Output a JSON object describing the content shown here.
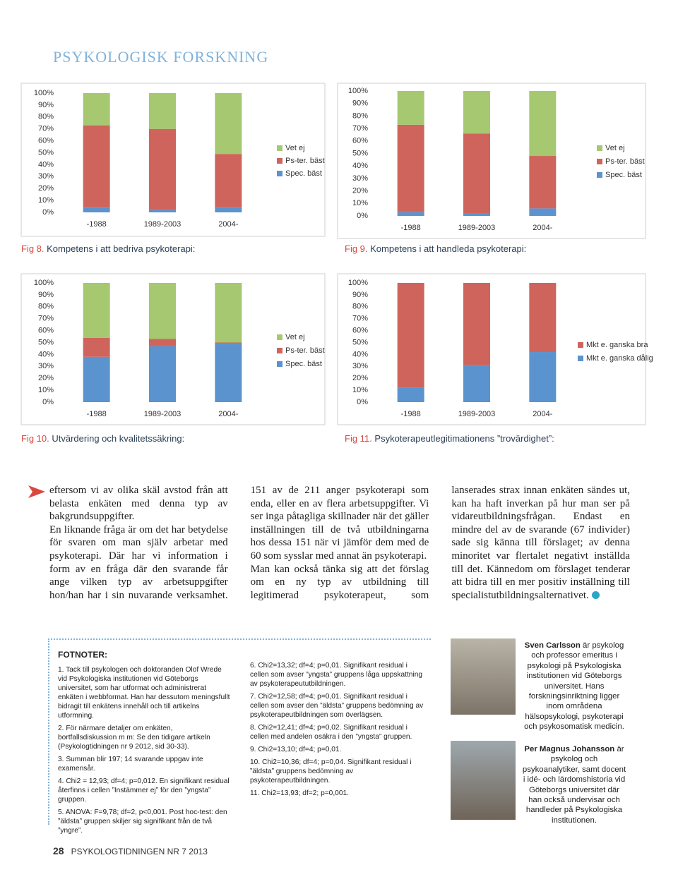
{
  "header": {
    "title": "PSYKOLOGISK FORSKNING"
  },
  "chart_data": [
    {
      "type": "stacked_bar",
      "categories": [
        "-1988",
        "1989-2003",
        "2004-"
      ],
      "series": [
        {
          "name": "Spec. bäst",
          "color": "#5b93cf",
          "values": [
            4,
            2,
            4
          ]
        },
        {
          "name": "Ps-ter. bäst",
          "color": "#cf645c",
          "values": [
            69,
            68,
            45
          ]
        },
        {
          "name": "Vet ej",
          "color": "#a6c870",
          "values": [
            27,
            30,
            51
          ]
        }
      ],
      "ylim": [
        0,
        100
      ],
      "yticks": [
        {
          "value": 0,
          "label": "0%"
        },
        {
          "value": 10,
          "label": "10%"
        },
        {
          "value": 20,
          "label": "20%"
        },
        {
          "value": 30,
          "label": "30%"
        },
        {
          "value": 40,
          "label": "40%"
        },
        {
          "value": 50,
          "label": "50%"
        },
        {
          "value": 60,
          "label": "60%"
        },
        {
          "value": 70,
          "label": "70%"
        },
        {
          "value": 80,
          "label": "80%"
        },
        {
          "value": 90,
          "label": "90%"
        },
        {
          "value": 100,
          "label": "100%"
        }
      ],
      "legend": "right"
    },
    {
      "type": "stacked_bar",
      "categories": [
        "-1988",
        "1989-2003",
        "2004-"
      ],
      "series": [
        {
          "name": "Spec. bäst",
          "color": "#5b93cf",
          "values": [
            3,
            2,
            6
          ]
        },
        {
          "name": "Ps-ter. bäst",
          "color": "#cf645c",
          "values": [
            70,
            64,
            42
          ]
        },
        {
          "name": "Vet ej",
          "color": "#a6c870",
          "values": [
            27,
            34,
            52
          ]
        }
      ],
      "ylim": [
        0,
        100
      ],
      "yticks": [
        {
          "value": 0,
          "label": "0%"
        },
        {
          "value": 10,
          "label": "10%"
        },
        {
          "value": 20,
          "label": "20%"
        },
        {
          "value": 30,
          "label": "30%"
        },
        {
          "value": 40,
          "label": "40%"
        },
        {
          "value": 50,
          "label": "50%"
        },
        {
          "value": 60,
          "label": "60%"
        },
        {
          "value": 70,
          "label": "70%"
        },
        {
          "value": 80,
          "label": "80%"
        },
        {
          "value": 90,
          "label": "90%"
        },
        {
          "value": 100,
          "label": "100%"
        }
      ],
      "legend": "right"
    },
    {
      "type": "stacked_bar",
      "categories": [
        "-1988",
        "1989-2003",
        "2004-"
      ],
      "series": [
        {
          "name": "Spec. bäst",
          "color": "#5b93cf",
          "values": [
            38,
            47,
            49
          ]
        },
        {
          "name": "Ps-ter. bäst",
          "color": "#cf645c",
          "values": [
            16,
            6,
            1
          ]
        },
        {
          "name": "Vet ej",
          "color": "#a6c870",
          "values": [
            46,
            47,
            50
          ]
        }
      ],
      "ylim": [
        0,
        100
      ],
      "yticks": [
        {
          "value": 0,
          "label": "0%"
        },
        {
          "value": 10,
          "label": "10%"
        },
        {
          "value": 20,
          "label": "20%"
        },
        {
          "value": 30,
          "label": "30%"
        },
        {
          "value": 40,
          "label": "40%"
        },
        {
          "value": 50,
          "label": "50%"
        },
        {
          "value": 60,
          "label": "60%"
        },
        {
          "value": 70,
          "label": "70%"
        },
        {
          "value": 80,
          "label": "80%"
        },
        {
          "value": 90,
          "label": "90%"
        },
        {
          "value": 100,
          "label": "100%"
        }
      ],
      "legend": "right"
    },
    {
      "type": "stacked_bar",
      "categories": [
        "-1988",
        "1989-2003",
        "2004-"
      ],
      "series": [
        {
          "name": "Mkt e. ganska dålig",
          "color": "#5b93cf",
          "values": [
            12,
            31,
            42
          ]
        },
        {
          "name": "Mkt e. ganska bra",
          "color": "#cf645c",
          "values": [
            88,
            69,
            58
          ]
        }
      ],
      "ylim": [
        0,
        100
      ],
      "yticks": [
        {
          "value": 0,
          "label": "0%"
        },
        {
          "value": 10,
          "label": "10%"
        },
        {
          "value": 20,
          "label": "20%"
        },
        {
          "value": 30,
          "label": "30%"
        },
        {
          "value": 40,
          "label": "40%"
        },
        {
          "value": 50,
          "label": "50%"
        },
        {
          "value": 60,
          "label": "60%"
        },
        {
          "value": 70,
          "label": "70%"
        },
        {
          "value": 80,
          "label": "80%"
        },
        {
          "value": 90,
          "label": "90%"
        },
        {
          "value": 100,
          "label": "100%"
        }
      ],
      "legend": "right"
    }
  ],
  "captions": [
    {
      "fig": "Fig 8.",
      "text": "Kompetens i att bedriva psykoterapi:"
    },
    {
      "fig": "Fig 9.",
      "text": "Kompetens i att handleda psykoterapi:"
    },
    {
      "fig": "Fig 10.",
      "text": "Utvärdering och kvalitetssäkring:"
    },
    {
      "fig": "Fig 11.",
      "text": "Psykoterapeutlegitimationens ”trovärdighet”:"
    }
  ],
  "body": [
    "eftersom vi av olika skäl avstod från att belasta enkäten med denna typ av bakgrundsuppgifter.",
    "En liknande fråga är om det har betydelse för svaren om man själv arbetar med psykoterapi. Där har vi information i form av en fråga där den svarande får ange vilken typ av arbetsuppgifter hon/han har i sin nuvarande verksamhet. 151 av de 211 anger psykoterapi som enda, eller en av flera arbetsuppgifter. Vi ser inga påtagliga skillnader när det gäller inställningen till de två utbildningarna hos dessa 151 när vi jämför dem med de 60 som sysslar med annat än psykoterapi.",
    "Man kan också tänka sig att det förslag om en ny typ av utbildning till legitimerad psykoterapeut, som lanserades strax innan enkäten sändes ut, kan ha haft inverkan på hur man ser på vidareutbildningsfrågan. Endast en mindre del av de svarande (67 individer) sade sig känna till förslaget; av denna minoritet var flertalet negativt inställda till det. Kännedom om förslaget tenderar att bidra till en mer positiv inställning till specialistutbildningsalternativet."
  ],
  "footnotes": {
    "heading": "FOTNOTER:",
    "items": [
      "1. Tack till psykologen och doktoranden Olof Wrede vid Psykologiska institutionen vid Göteborgs universitet, som har utformat och administrerat enkäten i webbformat. Han har dessutom meningsfullt bidragit till enkätens innehåll och till artikelns utformning.",
      "2. För närmare detaljer om enkäten, bortfallsdiskussion m m: Se den tidigare artikeln (Psykologtidningen nr 9 2012, sid 30-33).",
      "3. Summan blir 197; 14 svarande uppgav inte examensår.",
      "4. Chi2 = 12,93; df=4; p=0,012. En signifikant residual återfinns i cellen ”Instämmer ej” för den ”yngsta” gruppen.",
      "5. ANOVA: F=9,78; df=2, p<0,001. Post hoc-test: den ”äldsta” gruppen skiljer sig signifikant från de två ”yngre”.",
      "6. Chi2=13,32; df=4; p=0,01. Signifikant residual i cellen som avser ”yngsta” gruppens låga uppskattning av psykoterapeututbildningen.",
      "7. Chi2=12,58; df=4; p=0,01. Signifikant residual i cellen som avser den ”äldsta” gruppens bedömning av psykoterapeutbildningen som överlägsen.",
      "8. Chi2=12,41; df=4; p=0,02. Signifikant residual i cellen med andelen osäkra i den ”yngsta” gruppen.",
      "9. Chi2=13,10; df=4; p=0,01.",
      "10. Chi2=10,36; df=4; p=0,04. Signifikant residual i ”äldsta” gruppens bedömning av psykoterapeutbildningen.",
      "11. Chi2=13,93; df=2; p=0,001."
    ]
  },
  "authors": [
    {
      "name": "Sven Carlsson",
      "text": "är psykolog och professor emeritus i psykologi på Psykologiska institutionen vid Göteborgs universitet. Hans forskningsinriktning ligger inom områdena hälsopsykologi, psykoterapi och psykosomatisk medicin."
    },
    {
      "name": "Per Magnus Johansson",
      "text": "är psykolog och psykoanalytiker, samt docent i idé- och lärdomshistoria vid Göteborgs universitet där han också undervisar och handleder på Psykologiska institutionen."
    }
  ],
  "footer": {
    "page": "28",
    "publication": "PSYKOLOGTIDNINGEN NR 7 2013"
  }
}
